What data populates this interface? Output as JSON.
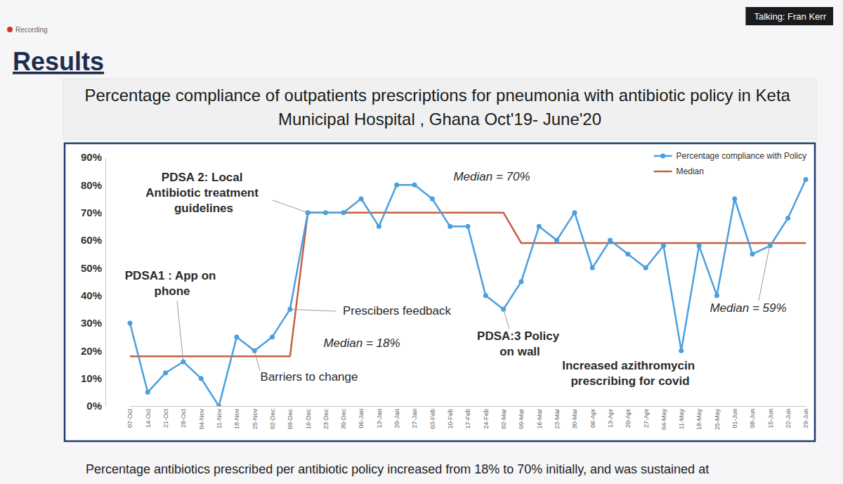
{
  "slide": {
    "recording": "Recording",
    "speaker": "Talking: Fran Kerr",
    "heading": "Results",
    "footer": "Percentage antibiotics prescribed per antibiotic policy increased from 18% to 70% initially, and was sustained at"
  },
  "chart_data": {
    "type": "line",
    "title": "Percentage compliance of outpatients prescriptions for pneumonia with antibiotic policy in Keta Municipal Hospital , Ghana Oct'19- June'20",
    "categories": [
      "07-Oct",
      "14-Oct",
      "21-Oct",
      "28-Oct",
      "04-Nov",
      "11-Nov",
      "18-Nov",
      "25-Nov",
      "02-Dec",
      "09-Dec",
      "16-Dec",
      "23-Dec",
      "30-Dec",
      "06-Jan",
      "13-Jan",
      "20-Jan",
      "27-Jan",
      "03-Feb",
      "10-Feb",
      "17-Feb",
      "24-Feb",
      "02-Mar",
      "09-Mar",
      "16-Mar",
      "23-Mar",
      "30-Mar",
      "06-Apr",
      "13-Apr",
      "20-Apr",
      "27-Apr",
      "04-May",
      "11-May",
      "18-May",
      "25-May",
      "01-Jun",
      "08-Jun",
      "15-Jun",
      "22-Jun",
      "29-Jun"
    ],
    "series": [
      {
        "name": "Percentage compliance with Policy",
        "color": "#4a9fdf",
        "marker": "circle",
        "values": [
          30,
          5,
          12,
          16,
          10,
          0,
          25,
          20,
          25,
          35,
          70,
          70,
          70,
          75,
          65,
          80,
          80,
          75,
          65,
          65,
          40,
          35,
          45,
          65,
          60,
          70,
          50,
          60,
          55,
          50,
          58,
          20,
          58,
          40,
          75,
          55,
          58,
          68,
          82
        ]
      },
      {
        "name": "Median",
        "color": "#c4603f",
        "marker": "none",
        "values": [
          18,
          18,
          18,
          18,
          18,
          18,
          18,
          18,
          18,
          18,
          70,
          70,
          70,
          70,
          70,
          70,
          70,
          70,
          70,
          70,
          70,
          70,
          59,
          59,
          59,
          59,
          59,
          59,
          59,
          59,
          59,
          59,
          59,
          59,
          59,
          59,
          59,
          59,
          59
        ]
      }
    ],
    "ylim": [
      0,
      90
    ],
    "yticks": [
      {
        "value": 0,
        "label": "0%"
      },
      {
        "value": 10,
        "label": "10%"
      },
      {
        "value": 20,
        "label": "20%"
      },
      {
        "value": 30,
        "label": "30%"
      },
      {
        "value": 40,
        "label": "40%"
      },
      {
        "value": 50,
        "label": "50%"
      },
      {
        "value": 60,
        "label": "60%"
      },
      {
        "value": 70,
        "label": "70%"
      },
      {
        "value": 80,
        "label": "80%"
      },
      {
        "value": 90,
        "label": "90%"
      }
    ],
    "grid": false,
    "legend": "top-right",
    "annotations": [
      "PDSA1 : App on phone",
      "PDSA 2: Local Antibiotic treatment guidelines",
      "Median = 18%",
      "Barriers to change",
      "Prescibers feedback",
      "Median = 70%",
      "PDSA:3 Policy on wall",
      "Increased azithromycin prescribing for covid",
      "Median = 59%"
    ]
  }
}
